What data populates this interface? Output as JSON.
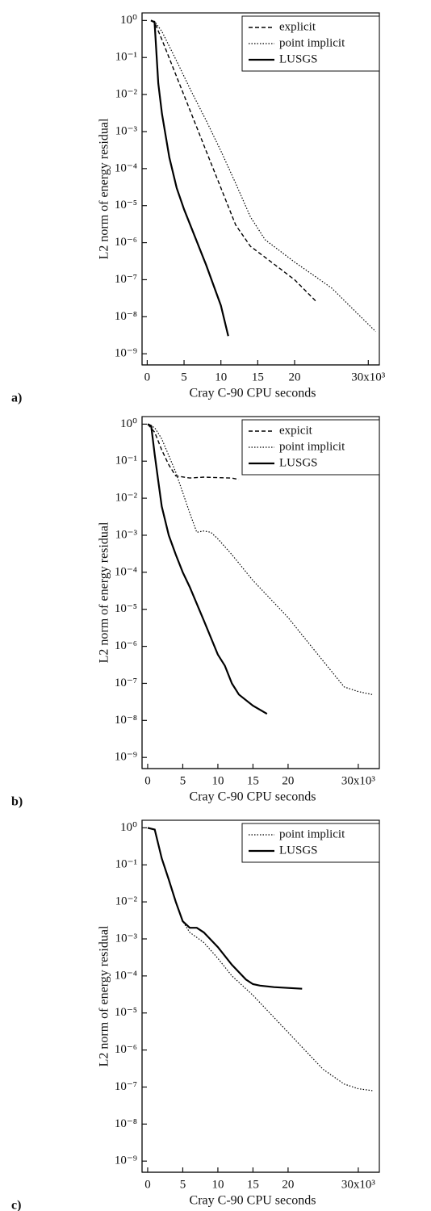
{
  "chart_data": [
    {
      "type": "line",
      "panel_label": "a)",
      "ylabel": "L2 norm of energy residual",
      "xlabel": "Cray C-90 CPU seconds",
      "log_y": true,
      "legend": "upper right",
      "xlim": [
        -0.7,
        31.5
      ],
      "ylim": [
        1.6,
        5e-10
      ],
      "xticks": [
        0,
        5,
        10,
        15,
        20,
        {
          "value": 30,
          "label": "30x10³"
        }
      ],
      "yticks": [
        {
          "value": 1,
          "label": "10⁰"
        },
        {
          "value": 0.1,
          "label": "10⁻¹"
        },
        {
          "value": 0.01,
          "label": "10⁻²"
        },
        {
          "value": 0.001,
          "label": "10⁻³"
        },
        {
          "value": 0.0001,
          "label": "10⁻⁴"
        },
        {
          "value": 1e-05,
          "label": "10⁻⁵"
        },
        {
          "value": 1e-06,
          "label": "10⁻⁶"
        },
        {
          "value": 1e-07,
          "label": "10⁻⁷"
        },
        {
          "value": 1e-08,
          "label": "10⁻⁸"
        },
        {
          "value": 1e-09,
          "label": "10⁻⁹"
        }
      ],
      "series": [
        {
          "name": "explicit",
          "color": "#000",
          "dash": "dashed",
          "x": [
            0.5,
            1,
            2,
            4,
            6,
            8,
            10,
            12,
            14,
            16,
            18,
            20,
            23
          ],
          "values": [
            1,
            0.9,
            0.3,
            0.03,
            0.003,
            0.0003,
            3e-05,
            3e-06,
            8e-07,
            4e-07,
            2e-07,
            1e-07,
            2.5e-08
          ]
        },
        {
          "name": "point implicit",
          "color": "#000",
          "dash": "dotted",
          "x": [
            0.5,
            1,
            2,
            4,
            6,
            8,
            10,
            12,
            14,
            16,
            20,
            25,
            31
          ],
          "values": [
            1,
            0.95,
            0.5,
            0.08,
            0.012,
            0.002,
            0.0003,
            4e-05,
            5e-06,
            1.2e-06,
            3e-07,
            6e-08,
            4e-09
          ]
        },
        {
          "name": "LUSGS",
          "color": "#000",
          "dash": "solid",
          "x": [
            0.5,
            1,
            1.5,
            2,
            3,
            4,
            5,
            6,
            8,
            10,
            11
          ],
          "values": [
            1,
            0.9,
            0.02,
            0.003,
            0.0002,
            3e-05,
            8e-06,
            2.5e-06,
            2.5e-07,
            2e-08,
            3e-09
          ]
        }
      ]
    },
    {
      "type": "line",
      "panel_label": "b)",
      "ylabel": "L2 norm of energy residual",
      "xlabel": "Cray C-90 CPU seconds",
      "log_y": true,
      "legend": "upper right",
      "xlim": [
        -0.8,
        33
      ],
      "ylim": [
        1.6,
        5e-10
      ],
      "xticks": [
        0,
        5,
        10,
        15,
        20,
        {
          "value": 30,
          "label": "30x10³"
        }
      ],
      "yticks": [
        {
          "value": 1,
          "label": "10⁰"
        },
        {
          "value": 0.1,
          "label": "10⁻¹"
        },
        {
          "value": 0.01,
          "label": "10⁻²"
        },
        {
          "value": 0.001,
          "label": "10⁻³"
        },
        {
          "value": 0.0001,
          "label": "10⁻⁴"
        },
        {
          "value": 1e-05,
          "label": "10⁻⁵"
        },
        {
          "value": 1e-06,
          "label": "10⁻⁶"
        },
        {
          "value": 1e-07,
          "label": "10⁻⁷"
        },
        {
          "value": 1e-08,
          "label": "10⁻⁸"
        },
        {
          "value": 1e-09,
          "label": "10⁻⁹"
        }
      ],
      "series": [
        {
          "name": "expicit",
          "color": "#000",
          "dash": "dashed",
          "x": [
            0,
            1,
            2,
            3,
            4,
            6,
            8,
            10,
            12,
            13
          ],
          "values": [
            1,
            0.6,
            0.2,
            0.08,
            0.04,
            0.035,
            0.037,
            0.036,
            0.035,
            0.032
          ]
        },
        {
          "name": "point implicit",
          "color": "#000",
          "dash": "dotted",
          "x": [
            0,
            1,
            2,
            4,
            6,
            7,
            8,
            9,
            10,
            12,
            15,
            20,
            25,
            28,
            30,
            32
          ],
          "values": [
            1,
            0.8,
            0.4,
            0.05,
            0.004,
            0.0012,
            0.0013,
            0.0012,
            0.0008,
            0.0003,
            6e-05,
            6e-06,
            4e-07,
            8e-08,
            6e-08,
            5e-08
          ]
        },
        {
          "name": "LUSGS",
          "color": "#000",
          "dash": "solid",
          "x": [
            0,
            0.5,
            1,
            1.5,
            2,
            3,
            4,
            5,
            6,
            8,
            10,
            11,
            12,
            13,
            15,
            17
          ],
          "values": [
            1,
            0.9,
            0.15,
            0.03,
            0.006,
            0.001,
            0.0003,
            0.0001,
            4e-05,
            5e-06,
            6e-07,
            3e-07,
            1e-07,
            5e-08,
            2.5e-08,
            1.5e-08
          ]
        }
      ]
    },
    {
      "type": "line",
      "panel_label": "c)",
      "ylabel": "L2 norm of energy residual",
      "xlabel": "Cray C-90 CPU seconds",
      "log_y": true,
      "legend": "upper right",
      "xlim": [
        -0.8,
        33
      ],
      "ylim": [
        1.6,
        5e-10
      ],
      "xticks": [
        0,
        5,
        10,
        15,
        20,
        {
          "value": 30,
          "label": "30x10³"
        }
      ],
      "yticks": [
        {
          "value": 1,
          "label": "10⁰"
        },
        {
          "value": 0.1,
          "label": "10⁻¹"
        },
        {
          "value": 0.01,
          "label": "10⁻²"
        },
        {
          "value": 0.001,
          "label": "10⁻³"
        },
        {
          "value": 0.0001,
          "label": "10⁻⁴"
        },
        {
          "value": 1e-05,
          "label": "10⁻⁵"
        },
        {
          "value": 1e-06,
          "label": "10⁻⁶"
        },
        {
          "value": 1e-07,
          "label": "10⁻⁷"
        },
        {
          "value": 1e-08,
          "label": "10⁻⁸"
        },
        {
          "value": 1e-09,
          "label": "10⁻⁹"
        }
      ],
      "series": [
        {
          "name": "point implicit",
          "color": "#000",
          "dash": "dotted",
          "x": [
            0,
            1,
            2,
            3,
            4,
            5,
            6,
            8,
            10,
            12,
            15,
            20,
            25,
            28,
            30,
            32
          ],
          "values": [
            1,
            0.9,
            0.15,
            0.04,
            0.01,
            0.003,
            0.0015,
            0.0008,
            0.0003,
            0.0001,
            3e-05,
            3e-06,
            3e-07,
            1.2e-07,
            9e-08,
            8e-08
          ]
        },
        {
          "name": "LUSGS",
          "color": "#000",
          "dash": "solid",
          "x": [
            0,
            1,
            2,
            3,
            4,
            5,
            6,
            7,
            8,
            10,
            12,
            14,
            15,
            16,
            18,
            22
          ],
          "values": [
            1,
            0.9,
            0.15,
            0.04,
            0.01,
            0.003,
            0.002,
            0.002,
            0.0015,
            0.0006,
            0.0002,
            8e-05,
            6e-05,
            5.5e-05,
            5e-05,
            4.5e-05
          ]
        }
      ]
    }
  ]
}
